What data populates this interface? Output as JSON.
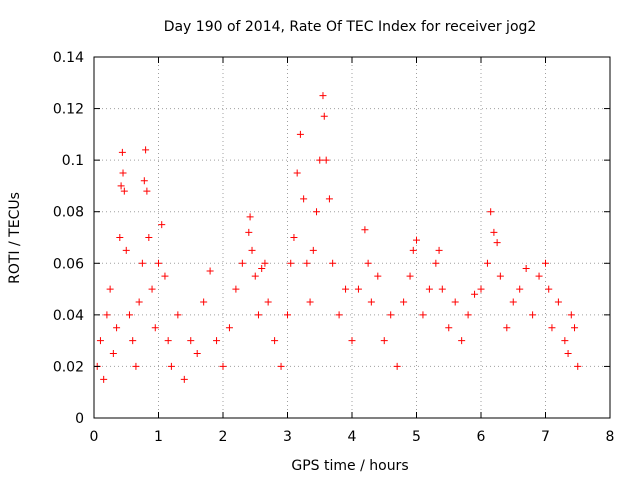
{
  "chart_data": {
    "type": "scatter",
    "title": "Day 190 of 2014, Rate Of TEC Index for receiver jog2",
    "xlabel": "GPS time / hours",
    "ylabel": "ROTI / TECUs",
    "xlim": [
      0,
      8
    ],
    "ylim": [
      0,
      0.14
    ],
    "x_ticks": [
      "0",
      "1",
      "2",
      "3",
      "4",
      "5",
      "6",
      "7",
      "8"
    ],
    "y_ticks": [
      "0",
      "0.02",
      "0.04",
      "0.06",
      "0.08",
      "0.1",
      "0.12",
      "0.14"
    ],
    "grid": true,
    "marker": "+",
    "color": "#ff0000",
    "series": [
      {
        "name": "ROTI",
        "x": [
          0.05,
          0.1,
          0.15,
          0.2,
          0.25,
          0.3,
          0.35,
          0.4,
          0.42,
          0.44,
          0.45,
          0.47,
          0.5,
          0.55,
          0.6,
          0.65,
          0.7,
          0.75,
          0.78,
          0.8,
          0.82,
          0.85,
          0.9,
          0.95,
          1.0,
          1.05,
          1.1,
          1.15,
          1.2,
          1.3,
          1.4,
          1.5,
          1.6,
          1.7,
          1.8,
          1.9,
          2.0,
          2.1,
          2.2,
          2.3,
          2.4,
          2.42,
          2.45,
          2.5,
          2.55,
          2.6,
          2.65,
          2.7,
          2.8,
          2.9,
          3.0,
          3.05,
          3.1,
          3.15,
          3.2,
          3.25,
          3.3,
          3.35,
          3.4,
          3.45,
          3.5,
          3.55,
          3.57,
          3.6,
          3.65,
          3.7,
          3.8,
          3.9,
          4.0,
          4.1,
          4.2,
          4.25,
          4.3,
          4.4,
          4.5,
          4.6,
          4.7,
          4.8,
          4.9,
          4.95,
          5.0,
          5.1,
          5.2,
          5.3,
          5.35,
          5.4,
          5.5,
          5.6,
          5.7,
          5.8,
          5.9,
          6.0,
          6.1,
          6.15,
          6.2,
          6.25,
          6.3,
          6.4,
          6.5,
          6.6,
          6.7,
          6.8,
          6.9,
          7.0,
          7.05,
          7.1,
          7.2,
          7.3,
          7.35,
          7.4,
          7.45,
          7.5
        ],
        "y": [
          0.02,
          0.03,
          0.015,
          0.04,
          0.05,
          0.025,
          0.035,
          0.07,
          0.09,
          0.103,
          0.095,
          0.088,
          0.065,
          0.04,
          0.03,
          0.02,
          0.045,
          0.06,
          0.092,
          0.104,
          0.088,
          0.07,
          0.05,
          0.035,
          0.06,
          0.075,
          0.055,
          0.03,
          0.02,
          0.04,
          0.015,
          0.03,
          0.025,
          0.045,
          0.057,
          0.03,
          0.02,
          0.035,
          0.05,
          0.06,
          0.072,
          0.078,
          0.065,
          0.055,
          0.04,
          0.058,
          0.06,
          0.045,
          0.03,
          0.02,
          0.04,
          0.06,
          0.07,
          0.095,
          0.11,
          0.085,
          0.06,
          0.045,
          0.065,
          0.08,
          0.1,
          0.125,
          0.117,
          0.1,
          0.085,
          0.06,
          0.04,
          0.05,
          0.03,
          0.05,
          0.073,
          0.06,
          0.045,
          0.055,
          0.03,
          0.04,
          0.02,
          0.045,
          0.055,
          0.065,
          0.069,
          0.04,
          0.05,
          0.06,
          0.065,
          0.05,
          0.035,
          0.045,
          0.03,
          0.04,
          0.048,
          0.05,
          0.06,
          0.08,
          0.072,
          0.068,
          0.055,
          0.035,
          0.045,
          0.05,
          0.058,
          0.04,
          0.055,
          0.06,
          0.05,
          0.035,
          0.045,
          0.03,
          0.025,
          0.04,
          0.035,
          0.02
        ]
      }
    ]
  }
}
